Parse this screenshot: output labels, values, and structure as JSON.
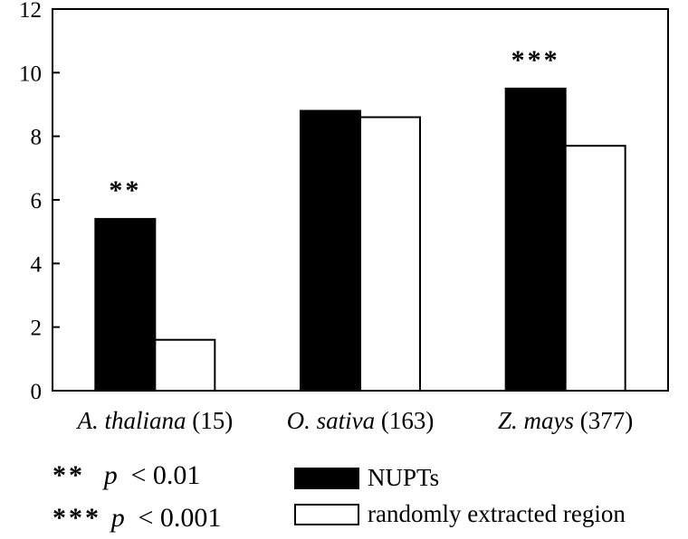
{
  "chart_data": {
    "type": "bar",
    "title": "",
    "xlabel": "",
    "ylabel": "",
    "ylim": [
      0,
      12
    ],
    "yticks": [
      0,
      2,
      4,
      6,
      8,
      10,
      12
    ],
    "grid": false,
    "legend_position": "bottom-right",
    "categories": [
      {
        "species": "A. thaliana",
        "count": "(15)"
      },
      {
        "species": "O. sativa",
        "count": "(163)"
      },
      {
        "species": "Z. mays",
        "count": "(377)"
      }
    ],
    "series": [
      {
        "name": "NUPTs",
        "color": "#000000",
        "values": [
          5.4,
          8.8,
          9.5
        ]
      },
      {
        "name": "randomly extracted region",
        "color": "#ffffff",
        "values": [
          1.6,
          8.6,
          7.7
        ]
      }
    ],
    "annotations": [
      "**",
      "",
      "***"
    ]
  },
  "significance_key": [
    {
      "stars": "**",
      "p": "p",
      "threshold": "< 0.01"
    },
    {
      "stars": "***",
      "p": "p",
      "threshold": "< 0.001"
    }
  ]
}
